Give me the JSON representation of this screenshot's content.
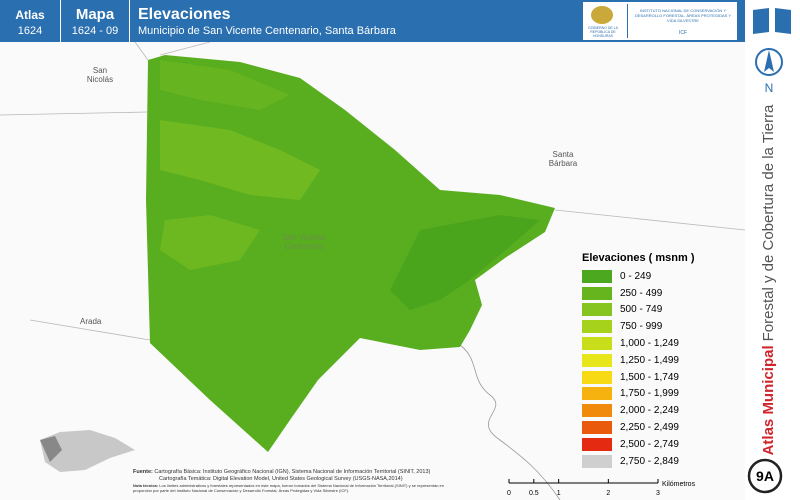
{
  "header": {
    "atlas_label": "Atlas",
    "atlas_number": "1624",
    "map_label": "Mapa",
    "map_number": "1624 - 09",
    "title": "Elevaciones",
    "subtitle": "Municipio de San Vicente Centenario, Santa Bárbara",
    "logo_left": "GOBIERNO DE LA REPÚBLICA DE HONDURAS",
    "logo_right": "INSTITUTO NACIONAL DE CONSERVACIÓN Y DESARROLLO FORESTAL, ÁREAS PROTEGIDAS Y VIDA SILVESTRE",
    "logo_acronym": "ICF"
  },
  "sidebar": {
    "north": "N",
    "atlas_bold": "Atlas Municipal",
    "atlas_rest": "Forestal y de Cobertura de la Tierra",
    "sheet": "9A"
  },
  "places": [
    "San Nicolás",
    "Santa Bárbara",
    "Arada",
    "San Vicente Centenario"
  ],
  "legend": {
    "title": "Elevaciones ( msnm )",
    "items": [
      {
        "label": "0 - 249",
        "color": "#4ca81e"
      },
      {
        "label": "250 - 499",
        "color": "#66b51f"
      },
      {
        "label": "500 - 749",
        "color": "#86c41f"
      },
      {
        "label": "750 - 999",
        "color": "#a6d21c"
      },
      {
        "label": "1,000 - 1,249",
        "color": "#c8de1b"
      },
      {
        "label": "1,250 - 1,499",
        "color": "#e6e61a"
      },
      {
        "label": "1,500 - 1,749",
        "color": "#f7d914"
      },
      {
        "label": "1,750 - 1,999",
        "color": "#f6b30f"
      },
      {
        "label": "2,000 - 2,249",
        "color": "#f08a0d"
      },
      {
        "label": "2,250 - 2,499",
        "color": "#ea5a0c"
      },
      {
        "label": "2,500 - 2,749",
        "color": "#e42a10"
      },
      {
        "label": "2,750 - 2,849",
        "color": "#cfcfcf"
      }
    ]
  },
  "source": {
    "label": "Fuente:",
    "lines": [
      "Cartografía Básica: Instituto Geográfico Nacional (IGN), Sistema Nacional de Información Territorial (SINIT, 2013)",
      "Cartografía Temática: Digital Elevation Model, United States Geological Survey (USGS-NASA,2014)"
    ],
    "note_label": "Nota técnica:",
    "note": "Los límites administrativos y forestales representados en este mapa, fueron tomados del Sistema Nacional de Información Territorial (SINIT) y se representan en proporción por parte del Instituto Nacional de Conservación y Desarrollo Forestal, Áreas Protegidas y Vida Silvestre (ICF)."
  },
  "scale_bar": {
    "ticks": [
      0,
      0.5,
      1,
      2,
      3
    ],
    "unit": "Kilómetros"
  }
}
